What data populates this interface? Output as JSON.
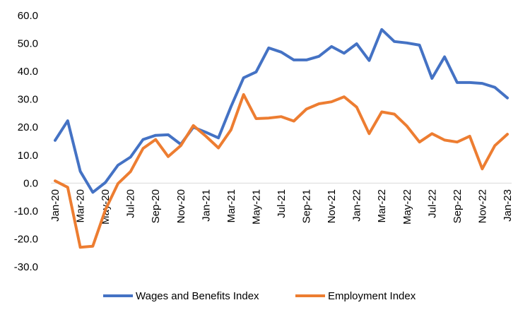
{
  "chart_data": {
    "type": "line",
    "title": "",
    "xlabel": "",
    "ylabel": "",
    "ylim": [
      -30,
      60
    ],
    "y_ticks": [
      "60.0",
      "50.0",
      "40.0",
      "30.0",
      "20.0",
      "10.0",
      "0.0",
      "-10.0",
      "-20.0",
      "-30.0"
    ],
    "grid": false,
    "legend_position": "bottom",
    "x": [
      "Jan-20",
      "Feb-20",
      "Mar-20",
      "Apr-20",
      "May-20",
      "Jun-20",
      "Jul-20",
      "Aug-20",
      "Sep-20",
      "Oct-20",
      "Nov-20",
      "Dec-20",
      "Jan-21",
      "Feb-21",
      "Mar-21",
      "Apr-21",
      "May-21",
      "Jun-21",
      "Jul-21",
      "Aug-21",
      "Sep-21",
      "Oct-21",
      "Nov-21",
      "Dec-21",
      "Jan-22",
      "Feb-22",
      "Mar-22",
      "Apr-22",
      "May-22",
      "Jun-22",
      "Jul-22",
      "Aug-22",
      "Sep-22",
      "Oct-22",
      "Nov-22",
      "Dec-22",
      "Jan-23"
    ],
    "x_tick_labels": [
      "Jan-20",
      "Mar-20",
      "May-20",
      "Jul-20",
      "Sep-20",
      "Nov-20",
      "Jan-21",
      "Mar-21",
      "May-21",
      "Jul-21",
      "Sep-21",
      "Nov-21",
      "Jan-22",
      "Mar-22",
      "May-22",
      "Jul-22",
      "Sep-22",
      "Nov-22",
      "Jan-23"
    ],
    "series": [
      {
        "name": "Wages and Benefits Index",
        "color": "#4472C4",
        "values": [
          15.3,
          22.3,
          4.2,
          -3.3,
          0.2,
          6.4,
          9.3,
          15.6,
          17.1,
          17.3,
          13.9,
          20.0,
          18.2,
          16.2,
          27.4,
          37.7,
          39.8,
          48.4,
          46.9,
          44.1,
          44.1,
          45.4,
          48.9,
          46.5,
          49.9,
          43.9,
          55.0,
          50.7,
          50.2,
          49.4,
          37.5,
          45.2,
          36.0,
          36.0,
          35.7,
          34.3,
          30.5
        ]
      },
      {
        "name": "Employment Index",
        "color": "#ED7D31",
        "values": [
          0.8,
          -1.5,
          -23.0,
          -22.6,
          -9.6,
          -0.2,
          4.1,
          12.4,
          15.6,
          9.5,
          13.4,
          20.6,
          16.8,
          12.6,
          19.1,
          31.7,
          23.1,
          23.3,
          23.8,
          22.2,
          26.5,
          28.4,
          29.1,
          30.9,
          27.2,
          17.7,
          25.5,
          24.7,
          20.4,
          14.7,
          17.7,
          15.4,
          14.7,
          16.8,
          5.1,
          13.4,
          17.5
        ]
      }
    ]
  }
}
